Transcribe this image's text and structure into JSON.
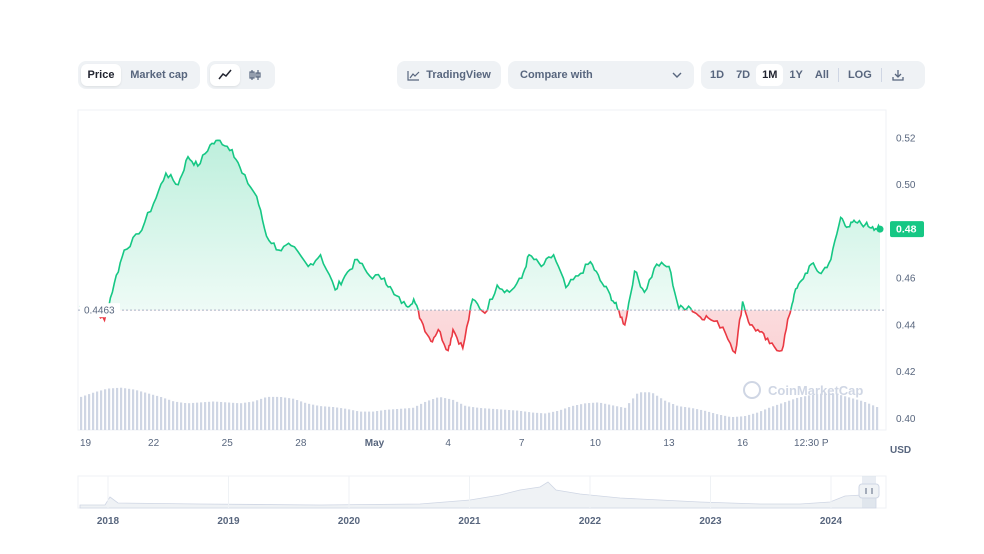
{
  "toolbar": {
    "metric_tabs": [
      {
        "label": "Price",
        "active": true
      },
      {
        "label": "Market cap",
        "active": false
      }
    ],
    "chart_type_icons": [
      "line-chart-icon",
      "candlestick-icon"
    ],
    "tradingview_label": "TradingView",
    "compare_label": "Compare with",
    "ranges": [
      {
        "label": "1D",
        "active": false
      },
      {
        "label": "7D",
        "active": false
      },
      {
        "label": "1M",
        "active": true
      },
      {
        "label": "1Y",
        "active": false
      },
      {
        "label": "All",
        "active": false
      }
    ],
    "log_label": "LOG",
    "download_icon": "download-icon"
  },
  "watermark": "CoinMarketCap",
  "chart_data": {
    "type": "line",
    "title": "",
    "xlabel": "",
    "ylabel": "USD",
    "ylim": [
      0.395,
      0.532
    ],
    "y_ticks": [
      "0.52",
      "0.50",
      "0.48",
      "0.46",
      "0.44",
      "0.42",
      "0.40"
    ],
    "x_ticks": [
      "19",
      "22",
      "25",
      "28",
      "May",
      "4",
      "7",
      "10",
      "13",
      "16",
      "12:30 P"
    ],
    "baseline": {
      "label": "0.4463",
      "value": 0.4463
    },
    "current_price": {
      "label": "0.48",
      "value": 0.481
    },
    "colors": {
      "up": "#16c784",
      "down": "#ea3943",
      "volume": "#cfd6e4",
      "baseline": "#a6b0c3"
    },
    "price_series": {
      "name": "",
      "t": [
        0,
        0.3,
        0.6,
        1.0,
        1.4,
        1.8,
        2.4,
        3.0,
        3.5,
        4.0,
        4.4,
        4.8,
        5.3,
        5.7,
        6.2,
        6.6,
        7.2,
        7.6,
        8.1,
        8.6,
        9.3,
        9.8,
        10.4,
        10.8,
        11.3,
        11.8,
        12.4,
        12.8,
        13.3,
        13.6,
        13.9,
        14.3,
        14.6,
        15.0,
        15.2,
        15.6,
        16.0,
        16.5,
        17.0,
        17.5,
        18.0,
        18.3,
        18.8,
        19.3,
        19.8,
        20.3,
        20.8,
        21.2,
        21.6,
        21.9,
        22.2,
        22.6,
        23.0,
        23.5,
        24.0,
        24.4,
        24.8,
        25.2,
        25.6,
        26.2,
        26.7,
        27.0,
        27.3,
        27.7,
        28.1,
        28.6,
        28.9,
        29.1,
        29.4,
        29.8
      ],
      "values": [
        0.4482,
        0.447,
        0.446,
        0.442,
        0.458,
        0.472,
        0.479,
        0.492,
        0.505,
        0.5,
        0.512,
        0.508,
        0.517,
        0.519,
        0.515,
        0.505,
        0.495,
        0.478,
        0.472,
        0.474,
        0.465,
        0.47,
        0.455,
        0.461,
        0.468,
        0.461,
        0.46,
        0.453,
        0.448,
        0.451,
        0.442,
        0.433,
        0.438,
        0.429,
        0.438,
        0.43,
        0.451,
        0.445,
        0.457,
        0.454,
        0.46,
        0.47,
        0.465,
        0.47,
        0.456,
        0.461,
        0.467,
        0.459,
        0.453,
        0.447,
        0.44,
        0.463,
        0.454,
        0.466,
        0.465,
        0.447,
        0.448,
        0.444,
        0.443,
        0.439,
        0.428,
        0.45,
        0.44,
        0.437,
        0.432,
        0.429,
        0.444,
        0.453,
        0.459,
        0.466
      ]
    },
    "price_series_tail": {
      "t": [
        30.2,
        30.6,
        31.0,
        31.3,
        31.6,
        32.0,
        32.3,
        32.6
      ],
      "values": [
        0.462,
        0.468,
        0.486,
        0.482,
        0.484,
        0.483,
        0.482,
        0.481
      ]
    },
    "volume_relative": [
      0.72,
      0.82,
      0.9,
      0.92,
      0.88,
      0.8,
      0.72,
      0.62,
      0.58,
      0.6,
      0.62,
      0.6,
      0.58,
      0.62,
      0.72,
      0.72,
      0.68,
      0.58,
      0.52,
      0.5,
      0.46,
      0.4,
      0.4,
      0.44,
      0.46,
      0.48,
      0.62,
      0.72,
      0.66,
      0.52,
      0.48,
      0.46,
      0.44,
      0.42,
      0.38,
      0.36,
      0.42,
      0.52,
      0.58,
      0.6,
      0.54,
      0.48,
      0.82,
      0.82,
      0.64,
      0.52,
      0.48,
      0.42,
      0.34,
      0.28,
      0.3,
      0.38,
      0.5,
      0.6,
      0.7,
      0.76,
      0.8,
      0.78,
      0.7,
      0.62,
      0.5
    ],
    "navigator": {
      "x_ticks": [
        "2018",
        "2019",
        "2020",
        "2021",
        "2022",
        "2023",
        "2024"
      ]
    }
  }
}
